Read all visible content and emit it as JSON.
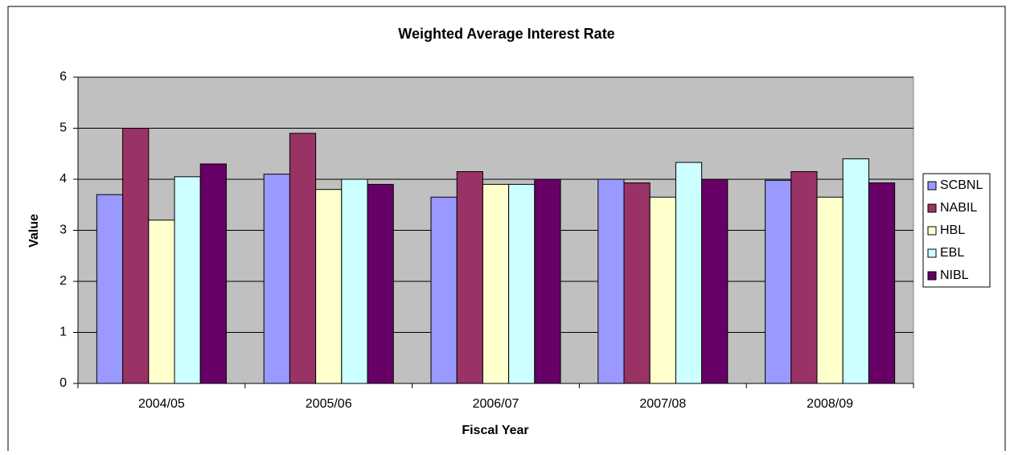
{
  "chart_data": {
    "type": "bar",
    "title": "Weighted Average Interest Rate",
    "x_label": "Fiscal Year",
    "y_label": "Value",
    "categories": [
      "2004/05",
      "2005/06",
      "2006/07",
      "2007/08",
      "2008/09"
    ],
    "series": [
      {
        "name": "SCBNL",
        "color": "#9999ff",
        "values": [
          3.7,
          4.1,
          3.65,
          4.0,
          3.98
        ]
      },
      {
        "name": "NABIL",
        "color": "#993366",
        "values": [
          5.0,
          4.9,
          4.15,
          3.93,
          4.15
        ]
      },
      {
        "name": "HBL",
        "color": "#ffffcc",
        "values": [
          3.2,
          3.8,
          3.9,
          3.65,
          3.65
        ]
      },
      {
        "name": "EBL",
        "color": "#ccffff",
        "values": [
          4.05,
          4.0,
          3.9,
          4.33,
          4.4
        ]
      },
      {
        "name": "NIBL",
        "color": "#660066",
        "values": [
          4.3,
          3.9,
          4.0,
          4.0,
          3.93
        ]
      }
    ],
    "ylim": [
      0,
      6
    ],
    "yticks": [
      0,
      1,
      2,
      3,
      4,
      5,
      6
    ],
    "grid": true,
    "legend": "right",
    "plot_background": "#c0c0c0"
  }
}
